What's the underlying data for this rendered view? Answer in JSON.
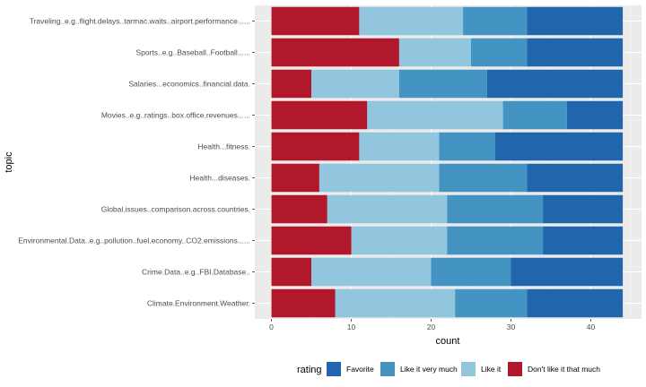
{
  "chart_data": {
    "type": "bar",
    "orientation": "horizontal",
    "stacked": true,
    "xlabel": "count",
    "ylabel": "topic",
    "xlim": [
      0,
      46
    ],
    "xticks": [
      0,
      10,
      20,
      30,
      40
    ],
    "grid": true,
    "legend_position": "bottom",
    "legend_title": "rating",
    "categories": [
      "Traveling..e.g..flight.delays..tarmac.waits..airport.performance......",
      "Sports..e.g..Baseball..Football......",
      "Salaries...economics..financial.data.",
      "Movies..e.g..ratings..box.office.revenues......",
      "Health...fitness.",
      "Health...diseases.",
      "Global.issues..comparison.across.countries.",
      "Environmental.Data..e.g..pollution..fuel.economy..CO2.emissions......",
      "Crime.Data..e.g..FBI.Database..",
      "Climate.Environment.Weather."
    ],
    "series": [
      {
        "name": "Don't like it that much",
        "color": "#b2182b",
        "values": [
          11,
          16,
          5,
          12,
          11,
          6,
          7,
          10,
          5,
          8
        ]
      },
      {
        "name": "Like it",
        "color": "#92c5de",
        "values": [
          13,
          9,
          11,
          17,
          10,
          15,
          15,
          12,
          15,
          15
        ]
      },
      {
        "name": "Like it very much",
        "color": "#4393c3",
        "values": [
          8,
          7,
          11,
          8,
          7,
          11,
          12,
          12,
          10,
          9
        ]
      },
      {
        "name": "Favorite",
        "color": "#2166ac",
        "values": [
          12,
          12,
          17,
          7,
          16,
          12,
          10,
          10,
          14,
          12
        ]
      }
    ],
    "legend_order": [
      "Favorite",
      "Like it very much",
      "Like it",
      "Don't like it that much"
    ]
  }
}
